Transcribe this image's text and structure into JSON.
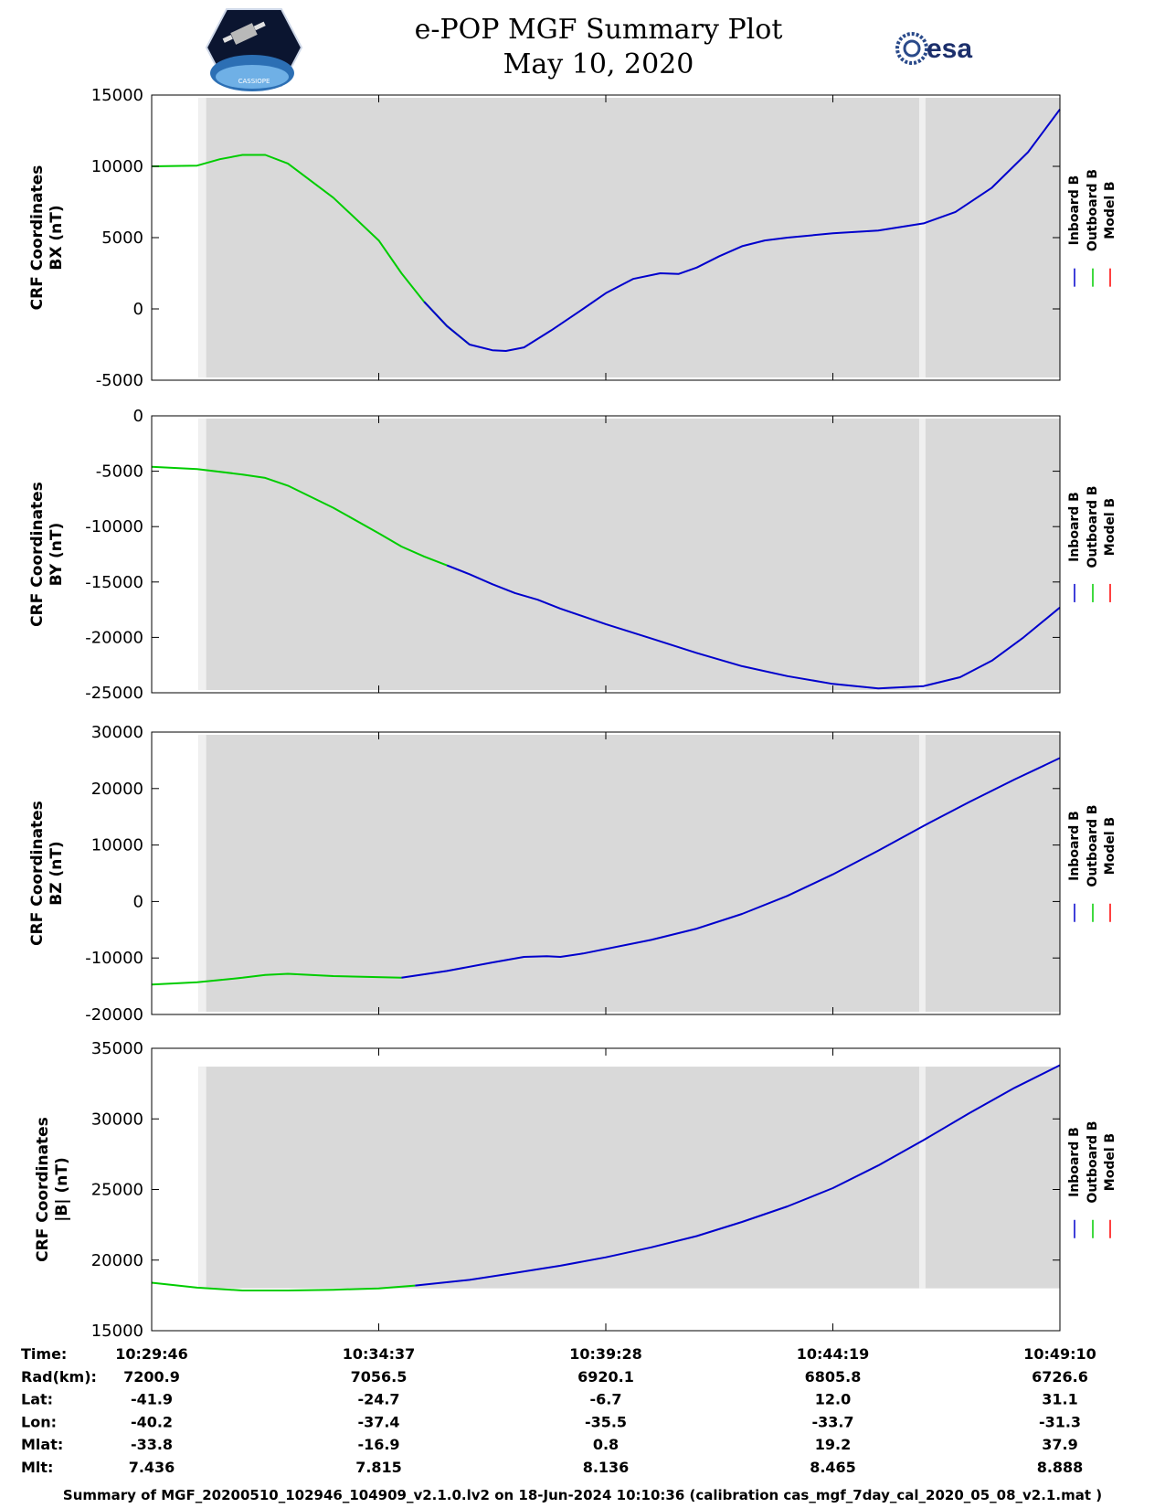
{
  "header": {
    "title_line1": "e-POP MGF Summary Plot",
    "title_line2": "May 10, 2020",
    "left_logo": "cassiope-mission-logo",
    "left_logo_text": "CASSIOPE",
    "right_logo": "esa-logo",
    "right_logo_text": "esa"
  },
  "colors": {
    "inboard": "#0000cc",
    "outboard": "#00cc00",
    "model": "#ff0000",
    "plot_background": "#d9d9d9",
    "gap": "#f0f0f0"
  },
  "chart_data": [
    {
      "type": "line",
      "ylabel": [
        "CRF Coordinates",
        "BX (nT)"
      ],
      "ylim": [
        -5000,
        15000
      ],
      "yticks": [
        15000,
        10000,
        5000,
        0,
        -5000
      ],
      "xlim": [
        0,
        20
      ],
      "coverage": [
        [
          1.03,
          1.2
        ],
        [
          16.9,
          17.04
        ]
      ],
      "legend": [
        "Inboard B",
        "Outboard B",
        "Model B"
      ],
      "series": [
        {
          "name": "Outboard B",
          "x": [
            0,
            1,
            1.5,
            2,
            2.5,
            3,
            4,
            5,
            5.5,
            6,
            6.5,
            7
          ],
          "y": [
            10000,
            10050,
            10500,
            10800,
            10800,
            10200,
            7800,
            4800,
            2500,
            500,
            -1200,
            -2500
          ]
        },
        {
          "name": "Inboard B",
          "x": [
            6,
            6.5,
            7,
            7.5,
            7.8,
            8.2,
            8.8,
            9.5,
            10,
            10.6,
            11.2,
            11.6,
            12,
            12.5,
            13,
            13.5,
            14,
            15,
            16,
            17,
            17.7,
            18.5,
            19.3,
            20
          ],
          "y": [
            500,
            -1200,
            -2500,
            -2900,
            -2950,
            -2700,
            -1500,
            0,
            1100,
            2100,
            2500,
            2450,
            2900,
            3700,
            4400,
            4800,
            5000,
            5300,
            5500,
            6000,
            6800,
            8500,
            11000,
            14000
          ]
        }
      ]
    },
    {
      "type": "line",
      "ylabel": [
        "CRF Coordinates",
        "BY (nT)"
      ],
      "ylim": [
        -25000,
        0
      ],
      "yticks": [
        0,
        -5000,
        -10000,
        -15000,
        -20000,
        -25000
      ],
      "xlim": [
        0,
        20
      ],
      "coverage": [
        [
          1.03,
          1.2
        ],
        [
          16.9,
          17.04
        ]
      ],
      "legend": [
        "Inboard B",
        "Outboard B",
        "Model B"
      ],
      "series": [
        {
          "name": "Outboard B",
          "x": [
            0,
            1,
            2,
            2.5,
            3,
            4,
            5,
            5.5,
            6,
            6.5
          ],
          "y": [
            -4600,
            -4800,
            -5300,
            -5600,
            -6300,
            -8300,
            -10600,
            -11800,
            -12700,
            -13500
          ]
        },
        {
          "name": "Inboard B",
          "x": [
            6.5,
            7,
            7.5,
            8,
            8.5,
            9,
            10,
            11,
            12,
            13,
            14,
            15,
            16,
            17,
            17.8,
            18.5,
            19.2,
            20
          ],
          "y": [
            -13500,
            -14300,
            -15200,
            -16000,
            -16600,
            -17400,
            -18800,
            -20100,
            -21400,
            -22600,
            -23500,
            -24200,
            -24600,
            -24400,
            -23600,
            -22100,
            -20000,
            -17300
          ]
        }
      ]
    },
    {
      "type": "line",
      "ylabel": [
        "CRF Coordinates",
        "BZ (nT)"
      ],
      "ylim": [
        -20000,
        30000
      ],
      "yticks": [
        30000,
        20000,
        10000,
        0,
        -10000,
        -20000
      ],
      "xlim": [
        0,
        20
      ],
      "coverage": [
        [
          1.03,
          1.2
        ],
        [
          16.9,
          17.04
        ]
      ],
      "legend": [
        "Inboard B",
        "Outboard B",
        "Model B"
      ],
      "series": [
        {
          "name": "Outboard B",
          "x": [
            0,
            1,
            2,
            2.5,
            3,
            4,
            5.5
          ],
          "y": [
            -14700,
            -14300,
            -13500,
            -13000,
            -12800,
            -13200,
            -13500
          ]
        },
        {
          "name": "Inboard B",
          "x": [
            5.5,
            6.5,
            7.5,
            8.2,
            8.7,
            9,
            9.5,
            11,
            12,
            13,
            14,
            15,
            16,
            17,
            18,
            19,
            20
          ],
          "y": [
            -13500,
            -12300,
            -10800,
            -9800,
            -9700,
            -9800,
            -9200,
            -6800,
            -4800,
            -2200,
            1000,
            4800,
            9000,
            13400,
            17600,
            21600,
            25400
          ]
        }
      ]
    },
    {
      "type": "line",
      "ylabel": [
        "CRF Coordinates",
        "|B| (nT)"
      ],
      "ylim": [
        15000,
        35000
      ],
      "yticks": [
        35000,
        30000,
        25000,
        20000,
        15000
      ],
      "xlim": [
        0,
        20
      ],
      "coverage": [
        [
          1.03,
          1.2
        ],
        [
          16.9,
          17.04
        ]
      ],
      "coverage_ylim": [
        18000,
        33700
      ],
      "legend": [
        "Inboard B",
        "Outboard B",
        "Model B"
      ],
      "series": [
        {
          "name": "Outboard B",
          "x": [
            0,
            1,
            2,
            3,
            4,
            5,
            5.8
          ],
          "y": [
            18400,
            18050,
            17850,
            17850,
            17900,
            18000,
            18200
          ]
        },
        {
          "name": "Inboard B",
          "x": [
            5.8,
            7,
            8,
            9,
            10,
            11,
            12,
            13,
            14,
            15,
            16,
            17,
            18,
            19,
            20
          ],
          "y": [
            18200,
            18600,
            19100,
            19600,
            20200,
            20900,
            21700,
            22700,
            23800,
            25100,
            26700,
            28500,
            30400,
            32200,
            33800
          ]
        }
      ]
    }
  ],
  "xaxis": {
    "positions": [
      0,
      5,
      10,
      15,
      20
    ],
    "row_labels": [
      "Time:",
      "Rad(km):",
      "Lat:",
      "Lon:",
      "Mlat:",
      "Mlt:"
    ],
    "columns": [
      [
        "10:29:46",
        "7200.9",
        "-41.9",
        "-40.2",
        "-33.8",
        "7.436"
      ],
      [
        "10:34:37",
        "7056.5",
        "-24.7",
        "-37.4",
        "-16.9",
        "7.815"
      ],
      [
        "10:39:28",
        "6920.1",
        "-6.7",
        "-35.5",
        "0.8",
        "8.136"
      ],
      [
        "10:44:19",
        "6805.8",
        "12.0",
        "-33.7",
        "19.2",
        "8.465"
      ],
      [
        "10:49:10",
        "6726.6",
        "31.1",
        "-31.3",
        "37.9",
        "8.888"
      ]
    ]
  },
  "footer": "Summary of MGF_20200510_102946_104909_v2.1.0.lv2 on 18-Jun-2024 10:10:36 (calibration cas_mgf_7day_cal_2020_05_08_v2.1.mat )"
}
